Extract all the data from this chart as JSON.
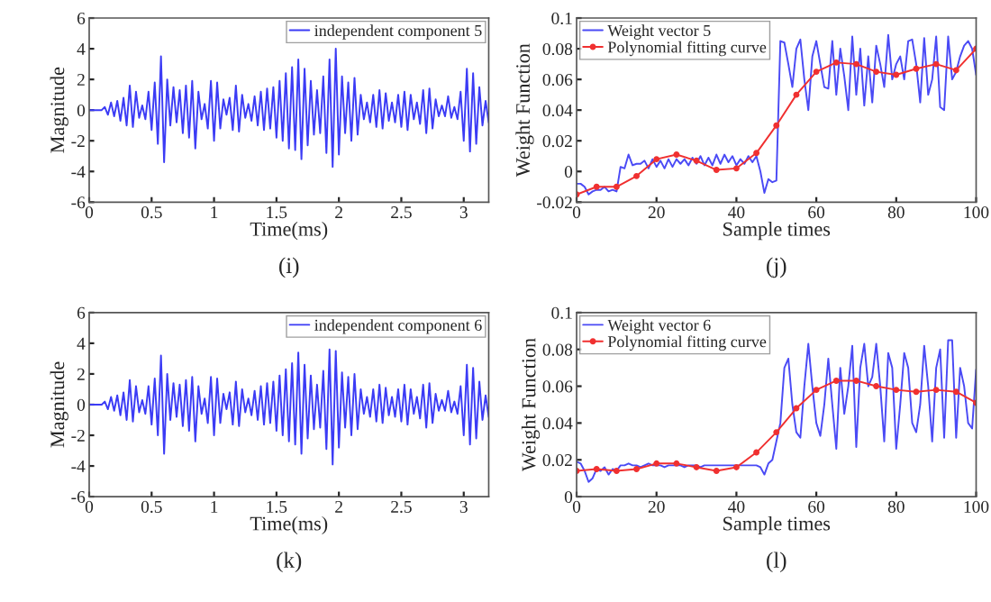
{
  "chart_data": [
    {
      "type": "line",
      "xlabel": "Time(ms)",
      "ylabel": "Magnitude",
      "annotations": [
        "(i)"
      ],
      "legend": "top right",
      "grid": false,
      "xlim": [
        0,
        3.2
      ],
      "xticks": [
        0,
        0.5,
        1,
        1.5,
        2,
        2.5,
        3
      ],
      "ylim": [
        -6,
        6
      ],
      "yticks": [
        -6,
        -4,
        -2,
        0,
        2,
        4,
        6
      ],
      "series": [
        {
          "name": "independent component 5",
          "color": "#3b3bf5",
          "x": [
            0,
            0.025,
            0.05,
            0.075,
            0.1,
            0.125,
            0.15,
            0.175,
            0.2,
            0.225,
            0.25,
            0.275,
            0.3,
            0.325,
            0.35,
            0.375,
            0.4,
            0.425,
            0.45,
            0.475,
            0.5,
            0.525,
            0.55,
            0.575,
            0.6,
            0.625,
            0.65,
            0.675,
            0.7,
            0.725,
            0.75,
            0.775,
            0.8,
            0.825,
            0.85,
            0.875,
            0.9,
            0.925,
            0.95,
            0.975,
            1,
            1.025,
            1.05,
            1.075,
            1.1,
            1.125,
            1.15,
            1.175,
            1.2,
            1.225,
            1.25,
            1.275,
            1.3,
            1.325,
            1.35,
            1.375,
            1.4,
            1.425,
            1.45,
            1.475,
            1.5,
            1.525,
            1.55,
            1.575,
            1.6,
            1.625,
            1.65,
            1.675,
            1.7,
            1.725,
            1.75,
            1.775,
            1.8,
            1.825,
            1.85,
            1.875,
            1.9,
            1.925,
            1.95,
            1.975,
            2,
            2.025,
            2.05,
            2.075,
            2.1,
            2.125,
            2.15,
            2.175,
            2.2,
            2.225,
            2.25,
            2.275,
            2.3,
            2.325,
            2.35,
            2.375,
            2.4,
            2.425,
            2.45,
            2.475,
            2.5,
            2.525,
            2.55,
            2.575,
            2.6,
            2.625,
            2.65,
            2.675,
            2.7,
            2.725,
            2.75,
            2.775,
            2.8,
            2.825,
            2.85,
            2.875,
            2.9,
            2.925,
            2.95,
            2.975,
            3,
            3.025,
            3.05,
            3.075,
            3.1,
            3.125,
            3.15,
            3.175,
            3.2
          ],
          "values": [
            0,
            0,
            0,
            0,
            0,
            0.2,
            -0.3,
            0.5,
            -0.4,
            0.6,
            -0.7,
            0.8,
            -1.0,
            1.6,
            -1.1,
            1.2,
            -0.5,
            0.3,
            -0.6,
            1.2,
            -1.3,
            1.8,
            -2.2,
            3.5,
            -3.4,
            2.0,
            -1.0,
            1.5,
            -0.8,
            1.3,
            -1.5,
            1.6,
            -1.8,
            1.9,
            -2.5,
            1.2,
            -0.6,
            0.4,
            -1.2,
            1.9,
            -2.0,
            1.8,
            -1.2,
            0.7,
            -0.3,
            0.8,
            -1.3,
            1.6,
            -1.4,
            1.0,
            -0.5,
            0.4,
            -0.7,
            0.9,
            -1.0,
            1.2,
            -1.3,
            1.4,
            -1.2,
            1.5,
            -1.8,
            1.9,
            -2.0,
            2.4,
            -2.5,
            2.8,
            -2.6,
            3.3,
            -3.2,
            2.7,
            -2.3,
            1.9,
            -1.6,
            1.3,
            -1.5,
            2.2,
            -2.8,
            3.3,
            -3.7,
            4.0,
            -2.9,
            2.2,
            -1.5,
            1.8,
            -2.0,
            2.1,
            -1.6,
            1.0,
            -0.6,
            0.5,
            -0.8,
            1.0,
            -1.1,
            1.3,
            -1.2,
            1.1,
            -0.7,
            0.5,
            -0.8,
            1.0,
            -1.1,
            1.2,
            -1.3,
            1.0,
            -0.6,
            0.5,
            -0.9,
            1.3,
            -1.5,
            1.4,
            -1.2,
            0.7,
            -0.4,
            0.3,
            -0.4,
            0.9,
            -0.5,
            0.2,
            -0.6,
            1.2,
            -2.0,
            2.7,
            -2.7,
            2.4,
            -2.2,
            1.5,
            -1.0,
            0.6,
            -0.8
          ]
        }
      ]
    },
    {
      "type": "line",
      "xlabel": "Sample times",
      "ylabel": "Weight Function",
      "annotations": [
        "(j)"
      ],
      "legend": "top left",
      "grid": false,
      "xlim": [
        0,
        100
      ],
      "xticks": [
        0,
        20,
        40,
        60,
        80,
        100
      ],
      "ylim": [
        -0.02,
        0.1
      ],
      "yticks": [
        -0.02,
        0,
        0.02,
        0.04,
        0.06,
        0.08,
        0.1
      ],
      "series": [
        {
          "name": "Weight vector 5",
          "color": "#4a4af5",
          "x": [
            0,
            1,
            2,
            3,
            4,
            5,
            6,
            7,
            8,
            9,
            10,
            11,
            12,
            13,
            14,
            15,
            16,
            17,
            18,
            19,
            20,
            21,
            22,
            23,
            24,
            25,
            26,
            27,
            28,
            29,
            30,
            31,
            32,
            33,
            34,
            35,
            36,
            37,
            38,
            39,
            40,
            41,
            42,
            43,
            44,
            45,
            46,
            47,
            48,
            49,
            50,
            51,
            52,
            53,
            54,
            55,
            56,
            57,
            58,
            59,
            60,
            61,
            62,
            63,
            64,
            65,
            66,
            67,
            68,
            69,
            70,
            71,
            72,
            73,
            74,
            75,
            76,
            77,
            78,
            79,
            80,
            81,
            82,
            83,
            84,
            85,
            86,
            87,
            88,
            89,
            90,
            91,
            92,
            93,
            94,
            95,
            96,
            97,
            98,
            99,
            100
          ],
          "values": [
            -0.008,
            -0.008,
            -0.01,
            -0.015,
            -0.013,
            -0.012,
            -0.012,
            -0.01,
            -0.013,
            -0.012,
            -0.013,
            0.003,
            0.002,
            0.011,
            0.004,
            0.005,
            0.005,
            0.007,
            0.002,
            0.008,
            0.003,
            0.007,
            0.002,
            0.008,
            0.003,
            0.008,
            0.005,
            0.008,
            0.004,
            0.009,
            0.005,
            0.01,
            0.004,
            0.009,
            0.004,
            0.011,
            0.005,
            0.011,
            0.006,
            0.01,
            0.004,
            0.008,
            0.005,
            0.01,
            0.006,
            0.01,
            0.0,
            -0.014,
            -0.005,
            -0.007,
            -0.006,
            0.085,
            0.084,
            0.07,
            0.055,
            0.08,
            0.086,
            0.06,
            0.04,
            0.075,
            0.085,
            0.07,
            0.055,
            0.054,
            0.085,
            0.05,
            0.08,
            0.062,
            0.04,
            0.088,
            0.05,
            0.08,
            0.043,
            0.075,
            0.045,
            0.082,
            0.07,
            0.055,
            0.089,
            0.06,
            0.07,
            0.075,
            0.06,
            0.085,
            0.086,
            0.07,
            0.045,
            0.087,
            0.05,
            0.06,
            0.088,
            0.042,
            0.04,
            0.088,
            0.06,
            0.065,
            0.075,
            0.082,
            0.085,
            0.08,
            0.063
          ]
        },
        {
          "name": "Polynomial fitting curve",
          "color": "#f03030",
          "marker": "circle",
          "x": [
            0,
            5,
            10,
            15,
            20,
            25,
            30,
            35,
            40,
            45,
            50,
            55,
            60,
            65,
            70,
            75,
            80,
            85,
            90,
            95,
            100
          ],
          "values": [
            -0.015,
            -0.01,
            -0.01,
            -0.003,
            0.008,
            0.011,
            0.007,
            0.001,
            0.002,
            0.012,
            0.03,
            0.05,
            0.065,
            0.071,
            0.07,
            0.065,
            0.063,
            0.067,
            0.07,
            0.066,
            0.08
          ]
        }
      ]
    },
    {
      "type": "line",
      "xlabel": "Time(ms)",
      "ylabel": "Magnitude",
      "annotations": [
        "(k)"
      ],
      "legend": "top right",
      "grid": false,
      "xlim": [
        0,
        3.2
      ],
      "xticks": [
        0,
        0.5,
        1,
        1.5,
        2,
        2.5,
        3
      ],
      "ylim": [
        -6,
        6
      ],
      "yticks": [
        -6,
        -4,
        -2,
        0,
        2,
        4,
        6
      ],
      "series": [
        {
          "name": "independent component 6",
          "color": "#3b3bf5",
          "x": [
            0,
            0.025,
            0.05,
            0.075,
            0.1,
            0.125,
            0.15,
            0.175,
            0.2,
            0.225,
            0.25,
            0.275,
            0.3,
            0.325,
            0.35,
            0.375,
            0.4,
            0.425,
            0.45,
            0.475,
            0.5,
            0.525,
            0.55,
            0.575,
            0.6,
            0.625,
            0.65,
            0.675,
            0.7,
            0.725,
            0.75,
            0.775,
            0.8,
            0.825,
            0.85,
            0.875,
            0.9,
            0.925,
            0.95,
            0.975,
            1,
            1.025,
            1.05,
            1.075,
            1.1,
            1.125,
            1.15,
            1.175,
            1.2,
            1.225,
            1.25,
            1.275,
            1.3,
            1.325,
            1.35,
            1.375,
            1.4,
            1.425,
            1.45,
            1.475,
            1.5,
            1.525,
            1.55,
            1.575,
            1.6,
            1.625,
            1.65,
            1.675,
            1.7,
            1.725,
            1.75,
            1.775,
            1.8,
            1.825,
            1.85,
            1.875,
            1.9,
            1.925,
            1.95,
            1.975,
            2,
            2.025,
            2.05,
            2.075,
            2.1,
            2.125,
            2.15,
            2.175,
            2.2,
            2.225,
            2.25,
            2.275,
            2.3,
            2.325,
            2.35,
            2.375,
            2.4,
            2.425,
            2.45,
            2.475,
            2.5,
            2.525,
            2.55,
            2.575,
            2.6,
            2.625,
            2.65,
            2.675,
            2.7,
            2.725,
            2.75,
            2.775,
            2.8,
            2.825,
            2.85,
            2.875,
            2.9,
            2.925,
            2.95,
            2.975,
            3,
            3.025,
            3.05,
            3.075,
            3.1,
            3.125,
            3.15,
            3.175,
            3.2
          ],
          "values": [
            0,
            0,
            0,
            0,
            0,
            0.2,
            -0.3,
            0.5,
            -0.4,
            0.6,
            -0.7,
            0.8,
            -1.0,
            1.6,
            -1.1,
            1.2,
            -0.5,
            0.3,
            -0.6,
            1.2,
            -1.3,
            1.7,
            -2.0,
            3.2,
            -3.2,
            2.0,
            -1.0,
            1.4,
            -0.8,
            1.3,
            -1.4,
            1.6,
            -1.7,
            1.8,
            -2.4,
            1.2,
            -0.6,
            0.4,
            -1.2,
            1.8,
            -2.0,
            1.7,
            -1.2,
            0.7,
            -0.3,
            0.8,
            -1.3,
            1.5,
            -1.4,
            1.0,
            -0.5,
            0.4,
            -0.7,
            0.9,
            -1.0,
            1.2,
            -1.3,
            1.4,
            -1.2,
            1.5,
            -1.7,
            1.9,
            -2.0,
            2.3,
            -2.4,
            2.7,
            -2.6,
            3.4,
            -3.2,
            2.6,
            -2.2,
            1.9,
            -1.6,
            1.3,
            -1.5,
            2.2,
            -2.9,
            3.6,
            -3.9,
            3.5,
            -2.8,
            2.1,
            -1.5,
            1.8,
            -2.0,
            2.0,
            -1.6,
            1.0,
            -0.6,
            0.5,
            -0.8,
            1.0,
            -1.1,
            1.3,
            -1.2,
            1.1,
            -0.7,
            0.5,
            -0.8,
            1.0,
            -1.1,
            1.3,
            -1.3,
            1.0,
            -0.6,
            0.5,
            -0.9,
            1.3,
            -1.5,
            1.4,
            -1.2,
            0.7,
            -0.4,
            0.3,
            -0.4,
            0.9,
            -0.5,
            0.2,
            -0.6,
            1.2,
            -2.0,
            2.6,
            -2.6,
            2.4,
            -2.2,
            1.5,
            -1.0,
            0.6,
            -0.8
          ]
        }
      ]
    },
    {
      "type": "line",
      "xlabel": "Sample times",
      "ylabel": "Weight Function",
      "annotations": [
        "(l)"
      ],
      "legend": "top left",
      "grid": false,
      "xlim": [
        0,
        100
      ],
      "xticks": [
        0,
        20,
        40,
        60,
        80,
        100
      ],
      "ylim": [
        0,
        0.1
      ],
      "yticks": [
        0,
        0.02,
        0.04,
        0.06,
        0.08,
        0.1
      ],
      "series": [
        {
          "name": "Weight vector 6",
          "color": "#4a4af5",
          "x": [
            0,
            1,
            2,
            3,
            4,
            5,
            6,
            7,
            8,
            9,
            10,
            11,
            12,
            13,
            14,
            15,
            16,
            17,
            18,
            19,
            20,
            21,
            22,
            23,
            24,
            25,
            26,
            27,
            28,
            29,
            30,
            31,
            32,
            33,
            34,
            35,
            36,
            37,
            38,
            39,
            40,
            41,
            42,
            43,
            44,
            45,
            46,
            47,
            48,
            49,
            50,
            51,
            52,
            53,
            54,
            55,
            56,
            57,
            58,
            59,
            60,
            61,
            62,
            63,
            64,
            65,
            66,
            67,
            68,
            69,
            70,
            71,
            72,
            73,
            74,
            75,
            76,
            77,
            78,
            79,
            80,
            81,
            82,
            83,
            84,
            85,
            86,
            87,
            88,
            89,
            90,
            91,
            92,
            93,
            94,
            95,
            96,
            97,
            98,
            99,
            100
          ],
          "values": [
            0.019,
            0.018,
            0.014,
            0.008,
            0.01,
            0.015,
            0.014,
            0.016,
            0.012,
            0.015,
            0.014,
            0.017,
            0.017,
            0.018,
            0.017,
            0.017,
            0.016,
            0.017,
            0.018,
            0.017,
            0.017,
            0.017,
            0.016,
            0.017,
            0.017,
            0.017,
            0.017,
            0.016,
            0.017,
            0.017,
            0.017,
            0.016,
            0.017,
            0.017,
            0.017,
            0.017,
            0.017,
            0.017,
            0.017,
            0.017,
            0.017,
            0.017,
            0.017,
            0.017,
            0.017,
            0.017,
            0.016,
            0.012,
            0.018,
            0.02,
            0.03,
            0.04,
            0.07,
            0.075,
            0.05,
            0.035,
            0.032,
            0.06,
            0.083,
            0.06,
            0.04,
            0.033,
            0.05,
            0.075,
            0.05,
            0.026,
            0.07,
            0.045,
            0.06,
            0.082,
            0.027,
            0.07,
            0.083,
            0.06,
            0.065,
            0.083,
            0.06,
            0.03,
            0.078,
            0.07,
            0.026,
            0.05,
            0.078,
            0.07,
            0.04,
            0.035,
            0.05,
            0.082,
            0.06,
            0.03,
            0.07,
            0.08,
            0.032,
            0.085,
            0.085,
            0.032,
            0.07,
            0.06,
            0.04,
            0.037,
            0.069
          ]
        },
        {
          "name": "Polynomial fitting curve",
          "color": "#f03030",
          "marker": "circle",
          "x": [
            0,
            5,
            10,
            15,
            20,
            25,
            30,
            35,
            40,
            45,
            50,
            55,
            60,
            65,
            70,
            75,
            80,
            85,
            90,
            95,
            100
          ],
          "values": [
            0.014,
            0.015,
            0.014,
            0.015,
            0.018,
            0.018,
            0.016,
            0.014,
            0.016,
            0.024,
            0.035,
            0.048,
            0.058,
            0.063,
            0.063,
            0.06,
            0.058,
            0.057,
            0.058,
            0.057,
            0.051
          ]
        }
      ]
    }
  ]
}
